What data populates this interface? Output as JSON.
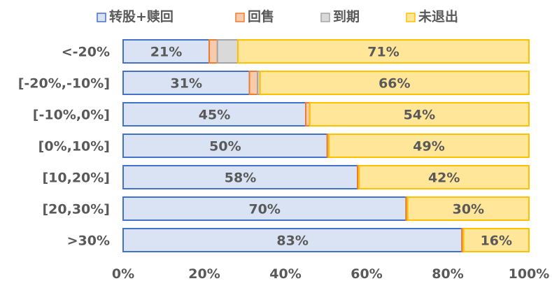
{
  "chart_data": {
    "type": "bar",
    "orientation": "horizontal",
    "stacked": "percent",
    "categories": [
      "<-20%",
      "[-20%,-10%]",
      "[-10%,0%]",
      "[0%,10%]",
      "[10,20%]",
      "[20,30%]",
      ">30%"
    ],
    "series": [
      {
        "name": "转股+赎回",
        "values": [
          21,
          31,
          45,
          50,
          58,
          70,
          83
        ],
        "fill": "#dae3f3",
        "stroke": "#4472c4",
        "show_labels": true
      },
      {
        "name": "回售",
        "values": [
          2,
          2,
          1,
          0.4,
          0.4,
          0.4,
          0.4
        ],
        "fill": "#f8cbad",
        "stroke": "#ed7d31",
        "show_labels": false
      },
      {
        "name": "到期",
        "values": [
          5,
          0.6,
          0,
          0,
          0,
          0,
          0
        ],
        "fill": "#d9d9d9",
        "stroke": "#a5a5a5",
        "show_labels": false
      },
      {
        "name": "未退出",
        "values": [
          71,
          66,
          54,
          49,
          42,
          30,
          16
        ],
        "fill": "#ffe699",
        "stroke": "#ffc000",
        "show_labels": true
      }
    ],
    "data_labels": [
      [
        "21%",
        "31%",
        "45%",
        "50%",
        "58%",
        "70%",
        "83%"
      ],
      [
        "",
        "",
        "",
        "",
        "",
        "",
        ""
      ],
      [
        "",
        "",
        "",
        "",
        "",
        "",
        ""
      ],
      [
        "71%",
        "66%",
        "54%",
        "49%",
        "42%",
        "30%",
        "16%"
      ]
    ],
    "x_ticks": [
      "0%",
      "20%",
      "40%",
      "60%",
      "80%",
      "100%"
    ],
    "xlim": [
      0,
      100
    ],
    "legend_position": "top",
    "grid": false,
    "title": "",
    "xlabel": "",
    "ylabel": "",
    "label_color": "#595959"
  }
}
